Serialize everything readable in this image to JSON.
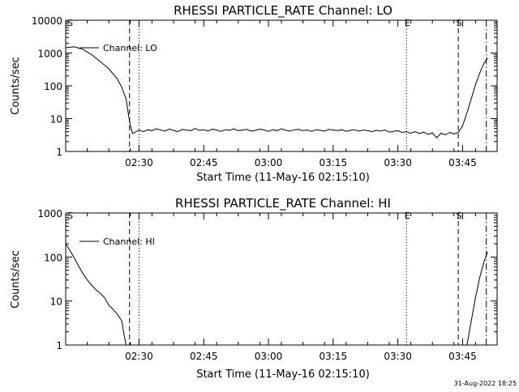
{
  "footer": {
    "timestamp": "31-Aug-2022 18:25"
  },
  "chart_data": [
    {
      "type": "line",
      "title": "RHESSI PARTICLE_RATE Channel: LO",
      "xlabel": "Start Time (11-May-16 02:15:10)",
      "ylabel": "Counts/sec",
      "yscale": "log",
      "ylim": [
        1,
        10000
      ],
      "xlim_minutes": [
        0,
        100
      ],
      "y_ticks": [
        "1",
        "10",
        "100",
        "1000",
        "10000"
      ],
      "x_ticks": [
        {
          "t": 17,
          "label": "02:30"
        },
        {
          "t": 32,
          "label": "02:45"
        },
        {
          "t": 47,
          "label": "03:00"
        },
        {
          "t": 62,
          "label": "03:15"
        },
        {
          "t": 77,
          "label": "03:30"
        },
        {
          "t": 92,
          "label": "03:45"
        }
      ],
      "legend": {
        "label": "Channel: LO",
        "position": "top-left"
      },
      "vlines": [
        {
          "t": 14.8,
          "style": "dashed",
          "label": ""
        },
        {
          "t": 17.0,
          "style": "dotted",
          "label": ""
        },
        {
          "t": 79.0,
          "style": "dotted",
          "label": "E"
        },
        {
          "t": 91.0,
          "style": "dashed",
          "label": "S"
        },
        {
          "t": 97.5,
          "style": "dashdot",
          "label": ""
        }
      ],
      "corner_label": "S",
      "series": [
        {
          "name": "Channel: LO",
          "x": [
            0,
            2,
            4,
            6,
            8,
            10,
            12,
            13,
            14,
            14.5,
            15,
            15.5,
            16,
            17,
            18,
            19,
            20,
            21,
            22,
            23,
            24,
            25,
            26,
            27,
            28,
            29,
            30,
            31,
            32,
            33,
            34,
            35,
            36,
            37,
            38,
            39,
            40,
            41,
            42,
            43,
            44,
            45,
            46,
            47,
            48,
            49,
            50,
            51,
            52,
            53,
            54,
            55,
            56,
            57,
            58,
            59,
            60,
            61,
            62,
            63,
            64,
            65,
            66,
            67,
            68,
            69,
            70,
            71,
            72,
            73,
            74,
            75,
            76,
            77,
            78,
            79,
            80,
            81,
            82,
            83,
            84,
            85,
            86,
            87,
            88,
            89,
            90,
            91,
            92,
            93,
            94,
            95,
            96,
            97,
            97.8
          ],
          "y": [
            1450,
            1550,
            1300,
            900,
            550,
            330,
            160,
            90,
            40,
            15,
            6,
            3.5,
            3.8,
            4.5,
            4.0,
            4.6,
            4.3,
            4.9,
            4.5,
            4.2,
            4.8,
            4.4,
            4.0,
            4.7,
            4.5,
            4.3,
            5.0,
            4.4,
            4.6,
            4.2,
            4.8,
            4.5,
            4.1,
            4.6,
            4.4,
            4.9,
            4.3,
            4.5,
            4.7,
            4.2,
            4.4,
            4.8,
            4.5,
            4.1,
            4.6,
            4.3,
            4.9,
            4.4,
            4.2,
            4.6,
            4.7,
            4.3,
            4.5,
            4.1,
            4.6,
            4.4,
            4.2,
            4.7,
            4.5,
            4.3,
            4.6,
            4.1,
            4.4,
            4.6,
            4.2,
            4.5,
            4.3,
            4.0,
            4.4,
            4.2,
            4.5,
            3.9,
            4.1,
            4.3,
            3.8,
            4.0,
            3.6,
            4.0,
            3.5,
            3.9,
            3.3,
            3.7,
            2.6,
            3.6,
            3.2,
            3.8,
            3.4,
            3.8,
            6,
            15,
            40,
            110,
            250,
            500,
            700
          ]
        }
      ]
    },
    {
      "type": "line",
      "title": "RHESSI PARTICLE_RATE Channel: HI",
      "xlabel": "Start Time (11-May-16 02:15:10)",
      "ylabel": "Counts/sec",
      "yscale": "log",
      "ylim": [
        1,
        1000
      ],
      "xlim_minutes": [
        0,
        100
      ],
      "y_ticks": [
        "1",
        "10",
        "100",
        "1000"
      ],
      "x_ticks": [
        {
          "t": 17,
          "label": "02:30"
        },
        {
          "t": 32,
          "label": "02:45"
        },
        {
          "t": 47,
          "label": "03:00"
        },
        {
          "t": 62,
          "label": "03:15"
        },
        {
          "t": 77,
          "label": "03:30"
        },
        {
          "t": 92,
          "label": "03:45"
        }
      ],
      "legend": {
        "label": "Channel: HI",
        "position": "top-left"
      },
      "vlines": [
        {
          "t": 14.8,
          "style": "dashed",
          "label": ""
        },
        {
          "t": 17.0,
          "style": "dotted",
          "label": ""
        },
        {
          "t": 79.0,
          "style": "dotted",
          "label": "E"
        },
        {
          "t": 91.0,
          "style": "dashed",
          "label": "S"
        },
        {
          "t": 97.5,
          "style": "dashdot",
          "label": ""
        }
      ],
      "corner_label": "S",
      "series": [
        {
          "name": "Channel: HI",
          "x": [
            0,
            1,
            2,
            3,
            4,
            5,
            6,
            7,
            8,
            9,
            10,
            11,
            12,
            13,
            13.5,
            14
          ],
          "y": [
            200,
            140,
            95,
            62,
            42,
            30,
            23,
            18,
            15,
            12,
            8,
            6.5,
            5,
            3.5,
            1.8,
            1
          ]
        },
        {
          "name": "Channel: HI",
          "x": [
            93.0,
            94,
            95,
            96,
            97,
            97.8
          ],
          "y": [
            1,
            3.5,
            12,
            35,
            80,
            130
          ]
        }
      ]
    }
  ]
}
